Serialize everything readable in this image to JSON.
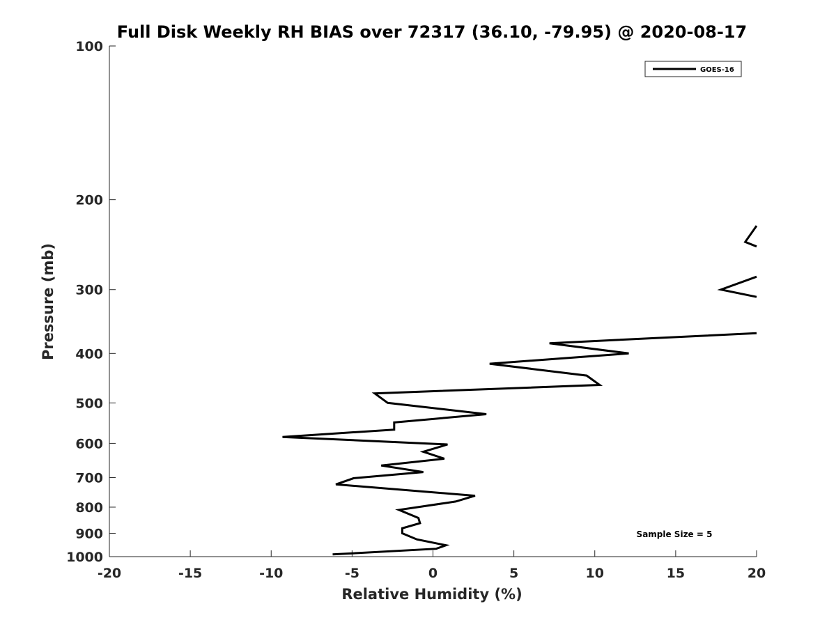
{
  "chart_data": {
    "type": "line",
    "title": "Full Disk Weekly RH BIAS over 72317 (36.10, -79.95) @ 2020-08-17",
    "xlabel": "Relative Humidity (%)",
    "ylabel": "Pressure (mb)",
    "xlim": [
      -20,
      20
    ],
    "ylim": [
      100,
      1000
    ],
    "y_scale": "log",
    "y_reversed": true,
    "grid": false,
    "x_ticks": [
      -20,
      -15,
      -10,
      -5,
      0,
      5,
      10,
      15,
      20
    ],
    "x_tick_labels": [
      "-20",
      "-15",
      "-10",
      "-5",
      "0",
      "5",
      "10",
      "15",
      "20"
    ],
    "y_ticks": [
      100,
      200,
      300,
      400,
      500,
      600,
      700,
      800,
      900,
      1000
    ],
    "y_tick_labels": [
      "100",
      "200",
      "300",
      "400",
      "500",
      "600",
      "700",
      "800",
      "900",
      "1000"
    ],
    "legend_position": "top-right",
    "series": [
      {
        "name": "GOES-16",
        "color": "#000000",
        "segments": [
          [
            [
              20.0,
              225
            ],
            [
              19.3,
              242
            ],
            [
              20.0,
              247
            ]
          ],
          [
            [
              20.0,
              283
            ],
            [
              17.8,
              300
            ],
            [
              20.0,
              310
            ]
          ],
          [
            [
              20.0,
              365
            ],
            [
              7.2,
              382
            ],
            [
              12.1,
              400
            ],
            [
              3.5,
              419
            ],
            [
              9.5,
              442
            ],
            [
              10.3,
              461
            ],
            [
              -3.6,
              479
            ],
            [
              -2.8,
              500
            ],
            [
              3.3,
              526
            ],
            [
              -2.4,
              546
            ],
            [
              -2.4,
              564
            ],
            [
              -9.3,
              583
            ],
            [
              0.9,
              603
            ],
            [
              -0.6,
              623
            ],
            [
              0.7,
              643
            ],
            [
              -3.2,
              663
            ],
            [
              -0.6,
              683
            ],
            [
              -4.9,
              702
            ],
            [
              -6.0,
              722
            ],
            [
              2.6,
              760
            ],
            [
              1.4,
              780
            ],
            [
              -2.1,
              810
            ],
            [
              -0.9,
              840
            ],
            [
              -0.8,
              860
            ],
            [
              -1.9,
              880
            ],
            [
              -1.9,
              900
            ],
            [
              -1.0,
              925
            ],
            [
              0.8,
              950
            ],
            [
              0.2,
              965
            ],
            [
              -6.2,
              990
            ]
          ]
        ]
      }
    ],
    "annotations": [
      {
        "text": "Sample Size = 5"
      }
    ]
  }
}
